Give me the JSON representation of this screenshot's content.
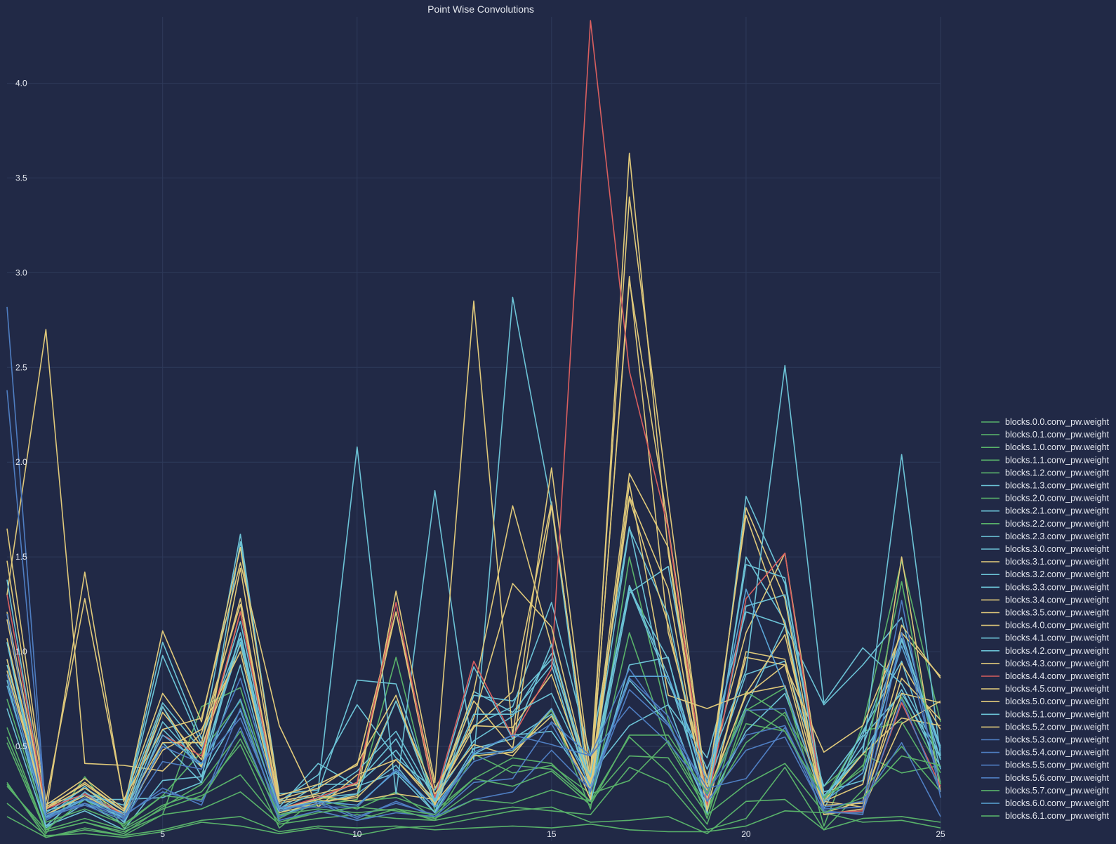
{
  "chart_data": {
    "type": "line",
    "title": "Point Wise Convolutions",
    "xlabel": "",
    "ylabel": "",
    "xlim": [
      1,
      25
    ],
    "ylim": [
      0,
      4.35
    ],
    "x": [
      1,
      2,
      3,
      4,
      5,
      6,
      7,
      8,
      9,
      10,
      11,
      12,
      13,
      14,
      15,
      16,
      17,
      18,
      19,
      20,
      21,
      22,
      23,
      24,
      25
    ],
    "xticks": [
      5,
      10,
      15,
      20,
      25
    ],
    "yticks": [
      0.5,
      1.0,
      1.5,
      2.0,
      2.5,
      3.0,
      3.5,
      4.0
    ],
    "grid": true,
    "legend_position": "right",
    "series": [
      {
        "name": "blocks.0.0.conv_pw.weight",
        "color": "#59b26a",
        "values": [
          0.13,
          0.02,
          0.06,
          0.03,
          0.06,
          0.11,
          0.13,
          0.05,
          0.08,
          0.07,
          0.08,
          0.06,
          0.07,
          0.08,
          0.07,
          0.09,
          0.06,
          0.05,
          0.05,
          0.08,
          0.16,
          0.15,
          0.1,
          0.11,
          0.07
        ]
      },
      {
        "name": "blocks.0.1.conv_pw.weight",
        "color": "#59b26a",
        "values": [
          0.2,
          0.03,
          0.04,
          0.02,
          0.05,
          0.1,
          0.08,
          0.04,
          0.07,
          0.03,
          0.07,
          0.08,
          0.12,
          0.16,
          0.18,
          0.1,
          0.11,
          0.13,
          0.04,
          0.21,
          0.22,
          0.06,
          0.12,
          0.13,
          0.1
        ]
      },
      {
        "name": "blocks.1.0.conv_pw.weight",
        "color": "#59b26a",
        "values": [
          0.31,
          0.02,
          0.07,
          0.03,
          0.14,
          0.17,
          0.26,
          0.09,
          0.12,
          0.14,
          0.12,
          0.11,
          0.15,
          0.18,
          0.16,
          0.14,
          0.39,
          0.3,
          0.06,
          0.12,
          0.39,
          0.06,
          0.27,
          0.5,
          0.26
        ]
      },
      {
        "name": "blocks.1.1.conv_pw.weight",
        "color": "#59b26a",
        "values": [
          0.52,
          0.05,
          0.1,
          0.05,
          0.14,
          0.71,
          0.81,
          0.14,
          0.19,
          0.22,
          0.97,
          0.16,
          0.46,
          0.36,
          0.4,
          0.25,
          0.32,
          0.53,
          0.18,
          0.52,
          0.68,
          0.29,
          0.46,
          0.36,
          0.4
        ]
      },
      {
        "name": "blocks.1.2.conv_pw.weight",
        "color": "#59b26a",
        "values": [
          0.6,
          0.05,
          0.1,
          0.04,
          0.18,
          0.3,
          0.58,
          0.12,
          0.22,
          0.17,
          0.26,
          0.12,
          0.27,
          0.4,
          0.38,
          0.21,
          1.1,
          0.51,
          0.16,
          0.62,
          0.58,
          0.21,
          0.4,
          0.76,
          0.36
        ]
      },
      {
        "name": "blocks.1.3.conv_pw.weight",
        "color": "#6cc3d6",
        "values": [
          0.7,
          0.08,
          0.16,
          0.06,
          0.32,
          0.34,
          0.69,
          0.13,
          0.22,
          0.31,
          0.54,
          0.18,
          0.46,
          0.56,
          0.58,
          0.29,
          0.85,
          0.62,
          0.19,
          0.58,
          0.78,
          0.23,
          0.46,
          0.8,
          0.39
        ]
      },
      {
        "name": "blocks.2.0.conv_pw.weight",
        "color": "#59b26a",
        "values": [
          0.3,
          0.04,
          0.34,
          0.07,
          0.19,
          0.26,
          0.51,
          0.07,
          0.23,
          0.21,
          0.23,
          0.16,
          0.33,
          0.44,
          0.41,
          0.21,
          0.55,
          0.36,
          0.09,
          0.69,
          0.81,
          0.08,
          0.61,
          1.48,
          0.63
        ]
      },
      {
        "name": "blocks.2.1.conv_pw.weight",
        "color": "#6cc3d6",
        "values": [
          0.85,
          0.07,
          0.2,
          0.09,
          0.52,
          0.31,
          0.93,
          0.15,
          0.23,
          0.25,
          0.4,
          0.15,
          0.49,
          0.54,
          0.67,
          0.33,
          1.33,
          0.96,
          0.24,
          0.71,
          1.14,
          0.22,
          0.5,
          1.07,
          0.5
        ]
      },
      {
        "name": "blocks.2.2.conv_pw.weight",
        "color": "#59b26a",
        "values": [
          0.55,
          0.06,
          0.22,
          0.08,
          0.24,
          0.47,
          0.74,
          0.1,
          0.16,
          0.11,
          0.17,
          0.11,
          0.45,
          0.47,
          0.69,
          0.17,
          1.5,
          0.64,
          0.12,
          0.79,
          0.66,
          0.22,
          0.58,
          0.63,
          0.29
        ]
      },
      {
        "name": "blocks.2.3.conv_pw.weight",
        "color": "#6cc3d6",
        "values": [
          0.96,
          0.12,
          0.29,
          0.1,
          0.59,
          0.39,
          1.1,
          0.17,
          0.3,
          0.3,
          0.48,
          0.2,
          0.79,
          0.68,
          0.93,
          0.25,
          1.31,
          1.45,
          0.28,
          0.88,
          0.95,
          0.29,
          0.56,
          1.1,
          0.43
        ]
      },
      {
        "name": "blocks.3.0.conv_pw.weight",
        "color": "#6cc3d6",
        "values": [
          0.93,
          0.2,
          0.24,
          0.15,
          0.98,
          0.51,
          1.62,
          0.21,
          0.35,
          0.72,
          0.44,
          0.27,
          0.61,
          0.71,
          1.26,
          0.45,
          1.66,
          0.72,
          0.44,
          1.21,
          1.14,
          0.72,
          0.93,
          1.18,
          0.38
        ]
      },
      {
        "name": "blocks.3.1.conv_pw.weight",
        "color": "#e0c97a",
        "values": [
          1.3,
          2.7,
          0.41,
          0.4,
          0.37,
          0.57,
          1.25,
          0.2,
          0.24,
          0.21,
          0.25,
          0.22,
          0.6,
          0.79,
          1.79,
          0.27,
          3.63,
          1.52,
          0.17,
          0.97,
          0.93,
          0.15,
          0.15,
          1.5,
          0.26
        ]
      },
      {
        "name": "blocks.3.2.conv_pw.weight",
        "color": "#6cc3d6",
        "values": [
          1.2,
          0.16,
          0.22,
          0.22,
          0.23,
          0.31,
          1.58,
          0.25,
          0.27,
          2.08,
          0.25,
          1.85,
          0.43,
          2.87,
          1.77,
          0.21,
          0.93,
          0.97,
          0.14,
          1.82,
          1.36,
          0.24,
          0.46,
          2.04,
          0.45
        ]
      },
      {
        "name": "blocks.3.3.conv_pw.weight",
        "color": "#6cc3d6",
        "values": [
          1.05,
          0.14,
          0.25,
          0.19,
          0.73,
          0.48,
          1.16,
          0.18,
          0.41,
          0.29,
          0.36,
          0.15,
          0.77,
          0.74,
          0.96,
          0.35,
          0.61,
          0.72,
          0.16,
          1.5,
          1.16,
          0.2,
          0.58,
          0.95,
          0.31
        ]
      },
      {
        "name": "blocks.3.4.conv_pw.weight",
        "color": "#e0c97a",
        "values": [
          1.17,
          0.15,
          1.42,
          0.21,
          0.78,
          0.5,
          1.04,
          0.15,
          0.2,
          0.24,
          1.32,
          0.31,
          2.85,
          0.56,
          1.97,
          0.36,
          3.4,
          1.8,
          0.25,
          0.77,
          0.93,
          0.47,
          0.61,
          1.1,
          0.87
        ]
      },
      {
        "name": "blocks.3.5.conv_pw.weight",
        "color": "#e0c97a",
        "values": [
          1.65,
          0.21,
          1.28,
          0.22,
          0.59,
          0.65,
          1.47,
          0.61,
          0.18,
          0.35,
          0.43,
          0.22,
          0.79,
          1.77,
          1.03,
          0.28,
          2.98,
          1.1,
          0.33,
          1.1,
          1.52,
          0.21,
          0.3,
          1.14,
          0.86
        ]
      },
      {
        "name": "blocks.4.0.conv_pw.weight",
        "color": "#e0c97a",
        "values": [
          1.48,
          0.19,
          0.33,
          0.17,
          1.11,
          0.63,
          1.55,
          0.24,
          0.3,
          0.4,
          1.21,
          0.23,
          0.74,
          0.49,
          1.77,
          0.31,
          1.94,
          1.55,
          0.21,
          1.76,
          1.28,
          0.15,
          0.21,
          0.94,
          0.59
        ]
      },
      {
        "name": "blocks.4.1.conv_pw.weight",
        "color": "#6cc3d6",
        "values": [
          1.38,
          0.15,
          0.28,
          0.16,
          1.05,
          0.54,
          1.07,
          0.17,
          0.26,
          0.85,
          0.83,
          0.21,
          0.92,
          0.54,
          1.04,
          0.3,
          1.65,
          1.19,
          0.21,
          1.46,
          1.39,
          0.17,
          0.55,
          0.78,
          0.44
        ]
      },
      {
        "name": "blocks.4.2.conv_pw.weight",
        "color": "#6cc3d6",
        "values": [
          0.88,
          0.12,
          0.22,
          0.12,
          0.63,
          0.4,
          1.05,
          0.16,
          0.23,
          0.37,
          0.58,
          0.22,
          0.53,
          0.66,
          0.99,
          0.28,
          1.35,
          0.87,
          0.21,
          1.24,
          1.3,
          0.26,
          0.32,
          1.06,
          0.49
        ]
      },
      {
        "name": "blocks.4.3.conv_pw.weight",
        "color": "#e0c97a",
        "values": [
          1.21,
          0.17,
          0.28,
          0.14,
          0.68,
          0.43,
          1.21,
          0.21,
          0.25,
          0.3,
          1.21,
          0.28,
          0.61,
          0.6,
          0.88,
          0.29,
          2.96,
          1.66,
          0.27,
          1.72,
          1.14,
          0.14,
          0.17,
          0.62,
          0.74
        ]
      },
      {
        "name": "blocks.4.4.conv_pw.weight",
        "color": "#d95f5f",
        "values": [
          1.3,
          0.17,
          0.25,
          0.14,
          0.56,
          0.45,
          1.21,
          0.17,
          0.23,
          0.31,
          1.26,
          0.23,
          0.95,
          0.55,
          0.91,
          4.33,
          2.48,
          1.65,
          0.19,
          1.28,
          1.52,
          0.15,
          0.16,
          0.73,
          0.29
        ]
      },
      {
        "name": "blocks.4.5.conv_pw.weight",
        "color": "#e0c97a",
        "values": [
          1.07,
          0.17,
          0.31,
          0.16,
          0.71,
          0.39,
          1.44,
          0.22,
          0.28,
          0.41,
          0.77,
          0.19,
          0.65,
          1.36,
          1.13,
          0.3,
          1.82,
          1.33,
          0.16,
          1.0,
          0.96,
          0.21,
          0.18,
          0.86,
          0.64
        ]
      },
      {
        "name": "blocks.5.0.conv_pw.weight",
        "color": "#e0c97a",
        "values": [
          0.9,
          0.18,
          0.3,
          0.16,
          0.52,
          0.52,
          1.28,
          0.17,
          0.22,
          0.28,
          0.74,
          0.25,
          0.51,
          0.45,
          0.7,
          0.22,
          1.89,
          0.77,
          0.7,
          0.78,
          1.09,
          0.21,
          0.46,
          0.65,
          0.61
        ]
      },
      {
        "name": "blocks.5.1.conv_pw.weight",
        "color": "#6cc3d6",
        "values": [
          1.05,
          0.08,
          0.26,
          0.12,
          0.71,
          0.34,
          1.1,
          0.13,
          0.2,
          0.25,
          0.74,
          0.2,
          0.67,
          0.67,
          0.78,
          0.34,
          1.34,
          0.84,
          0.38,
          0.9,
          2.51,
          0.73,
          1.02,
          0.83,
          0.45
        ]
      },
      {
        "name": "blocks.5.2.conv_pw.weight",
        "color": "#e0c97a",
        "values": [
          0.96,
          0.14,
          0.24,
          0.13,
          0.48,
          0.59,
          1.0,
          0.16,
          0.21,
          0.23,
          0.43,
          0.2,
          0.45,
          0.47,
          0.66,
          0.27,
          1.81,
          1.14,
          0.23,
          0.78,
          0.82,
          0.19,
          0.2,
          0.78,
          0.73
        ]
      },
      {
        "name": "blocks.5.3.conv_pw.weight",
        "color": "#4f7ec2",
        "values": [
          0.88,
          0.13,
          0.19,
          0.11,
          0.42,
          0.38,
          0.86,
          0.18,
          0.18,
          0.18,
          0.38,
          0.18,
          0.42,
          0.49,
          0.62,
          0.26,
          0.86,
          0.66,
          0.24,
          0.69,
          0.7,
          0.17,
          0.18,
          1.27,
          0.23
        ]
      },
      {
        "name": "blocks.5.4.conv_pw.weight",
        "color": "#4f7ec2",
        "values": [
          2.82,
          0.14,
          0.2,
          0.12,
          0.5,
          0.41,
          0.65,
          0.16,
          0.21,
          0.13,
          0.2,
          0.14,
          0.47,
          0.56,
          0.51,
          0.45,
          0.71,
          0.52,
          0.26,
          0.56,
          0.61,
          0.18,
          0.21,
          0.52,
          0.13
        ]
      },
      {
        "name": "blocks.5.5.conv_pw.weight",
        "color": "#4f7ec2",
        "values": [
          2.38,
          0.12,
          0.2,
          0.14,
          0.26,
          0.21,
          0.6,
          0.11,
          0.16,
          0.11,
          0.15,
          0.13,
          0.22,
          0.26,
          0.48,
          0.27,
          0.8,
          0.61,
          0.28,
          0.33,
          0.6,
          0.15,
          0.15,
          0.75,
          0.26
        ]
      },
      {
        "name": "blocks.5.6.conv_pw.weight",
        "color": "#4f7ec2",
        "values": [
          1.2,
          0.11,
          0.23,
          0.13,
          0.28,
          0.19,
          0.7,
          0.13,
          0.2,
          0.12,
          0.21,
          0.13,
          0.31,
          0.33,
          0.63,
          0.45,
          0.91,
          0.62,
          0.21,
          0.48,
          0.55,
          0.16,
          0.14,
          1.1,
          0.3
        ]
      },
      {
        "name": "blocks.5.7.conv_pw.weight",
        "color": "#59b26a",
        "values": [
          0.75,
          0.1,
          0.17,
          0.09,
          0.24,
          0.22,
          0.54,
          0.14,
          0.17,
          0.15,
          0.17,
          0.14,
          0.33,
          0.29,
          0.37,
          0.19,
          0.56,
          0.56,
          0.25,
          0.7,
          0.58,
          0.23,
          0.38,
          1.37,
          0.3
        ]
      },
      {
        "name": "blocks.6.0.conv_pw.weight",
        "color": "#5aa5d6",
        "values": [
          0.82,
          0.13,
          0.22,
          0.14,
          0.56,
          0.41,
          0.75,
          0.17,
          0.21,
          0.19,
          0.37,
          0.18,
          0.46,
          0.48,
          0.7,
          0.29,
          0.87,
          0.87,
          0.31,
          1.33,
          0.81,
          0.21,
          0.36,
          1.03,
          0.48
        ]
      },
      {
        "name": "blocks.6.1.conv_pw.weight",
        "color": "#59b26a",
        "values": [
          0.29,
          0.06,
          0.12,
          0.06,
          0.17,
          0.24,
          0.35,
          0.1,
          0.15,
          0.18,
          0.16,
          0.12,
          0.22,
          0.2,
          0.27,
          0.21,
          0.45,
          0.44,
          0.14,
          0.3,
          0.41,
          0.15,
          0.23,
          0.45,
          0.4
        ]
      }
    ]
  }
}
